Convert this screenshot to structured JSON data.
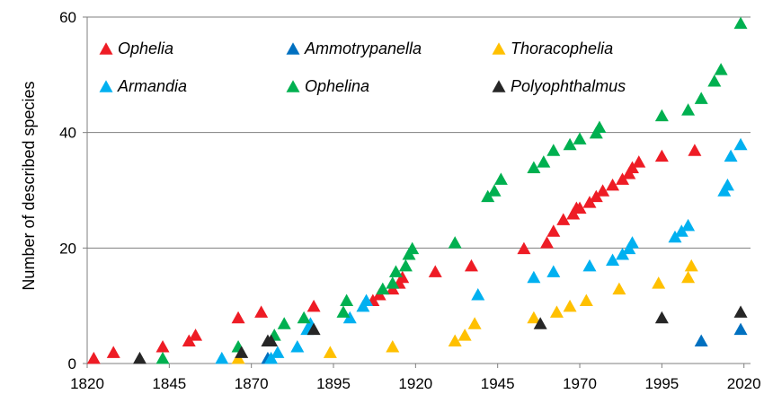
{
  "chart_data": {
    "type": "scatter",
    "title": "",
    "xlabel": "",
    "ylabel": "Number of described species",
    "xlim": [
      1820,
      2022
    ],
    "ylim": [
      0,
      60
    ],
    "xticks": [
      1820,
      1845,
      1870,
      1895,
      1920,
      1945,
      1970,
      1995,
      2020
    ],
    "yticks": [
      0,
      20,
      40,
      60
    ],
    "grid": "horizontal",
    "legend": {
      "placement": "top-left",
      "columns": 3
    },
    "marker": "triangle",
    "series": [
      {
        "name": "Ophelia",
        "color": "#ee1c25",
        "points": [
          [
            1822,
            1
          ],
          [
            1828,
            2
          ],
          [
            1843,
            3
          ],
          [
            1851,
            4
          ],
          [
            1853,
            5
          ],
          [
            1866,
            8
          ],
          [
            1873,
            9
          ],
          [
            1889,
            10
          ],
          [
            1907,
            11
          ],
          [
            1909,
            12
          ],
          [
            1913,
            13
          ],
          [
            1915,
            14
          ],
          [
            1916,
            15
          ],
          [
            1926,
            16
          ],
          [
            1937,
            17
          ],
          [
            1953,
            20
          ],
          [
            1960,
            21
          ],
          [
            1962,
            23
          ],
          [
            1965,
            25
          ],
          [
            1968,
            26
          ],
          [
            1969,
            27
          ],
          [
            1970,
            27
          ],
          [
            1973,
            28
          ],
          [
            1975,
            29
          ],
          [
            1977,
            30
          ],
          [
            1980,
            31
          ],
          [
            1983,
            32
          ],
          [
            1985,
            33
          ],
          [
            1986,
            34
          ],
          [
            1988,
            35
          ],
          [
            1995,
            36
          ],
          [
            2005,
            37
          ]
        ]
      },
      {
        "name": "Ammotrypanella",
        "color": "#0070c0",
        "points": [
          [
            1875,
            1
          ],
          [
            2007,
            4
          ],
          [
            2019,
            6
          ]
        ]
      },
      {
        "name": "Thoracophelia",
        "color": "#ffc000",
        "points": [
          [
            1866,
            1
          ],
          [
            1894,
            2
          ],
          [
            1913,
            3
          ],
          [
            1932,
            4
          ],
          [
            1935,
            5
          ],
          [
            1938,
            7
          ],
          [
            1956,
            8
          ],
          [
            1963,
            9
          ],
          [
            1967,
            10
          ],
          [
            1972,
            11
          ],
          [
            1982,
            13
          ],
          [
            1994,
            14
          ],
          [
            2003,
            15
          ],
          [
            2004,
            17
          ]
        ]
      },
      {
        "name": "Armandia",
        "color": "#00b0f0",
        "points": [
          [
            1861,
            1
          ],
          [
            1876,
            1
          ],
          [
            1878,
            2
          ],
          [
            1884,
            3
          ],
          [
            1887,
            6
          ],
          [
            1888,
            7
          ],
          [
            1900,
            8
          ],
          [
            1904,
            10
          ],
          [
            1905,
            11
          ],
          [
            1939,
            12
          ],
          [
            1956,
            15
          ],
          [
            1962,
            16
          ],
          [
            1973,
            17
          ],
          [
            1980,
            18
          ],
          [
            1983,
            19
          ],
          [
            1985,
            20
          ],
          [
            1986,
            21
          ],
          [
            1999,
            22
          ],
          [
            2001,
            23
          ],
          [
            2003,
            24
          ],
          [
            2014,
            30
          ],
          [
            2015,
            31
          ],
          [
            2016,
            36
          ],
          [
            2019,
            38
          ]
        ]
      },
      {
        "name": "Ophelina",
        "color": "#00b050",
        "points": [
          [
            1843,
            1
          ],
          [
            1866,
            3
          ],
          [
            1877,
            5
          ],
          [
            1880,
            7
          ],
          [
            1886,
            8
          ],
          [
            1898,
            9
          ],
          [
            1899,
            11
          ],
          [
            1910,
            13
          ],
          [
            1913,
            14
          ],
          [
            1914,
            16
          ],
          [
            1917,
            17
          ],
          [
            1918,
            19
          ],
          [
            1919,
            20
          ],
          [
            1932,
            21
          ],
          [
            1942,
            29
          ],
          [
            1944,
            30
          ],
          [
            1946,
            32
          ],
          [
            1956,
            34
          ],
          [
            1959,
            35
          ],
          [
            1962,
            37
          ],
          [
            1967,
            38
          ],
          [
            1970,
            39
          ],
          [
            1975,
            40
          ],
          [
            1976,
            41
          ],
          [
            1995,
            43
          ],
          [
            2003,
            44
          ],
          [
            2007,
            46
          ],
          [
            2011,
            49
          ],
          [
            2013,
            51
          ],
          [
            2019,
            59
          ]
        ]
      },
      {
        "name": "Polyophthalmus",
        "color": "#262626",
        "points": [
          [
            1836,
            1
          ],
          [
            1867,
            2
          ],
          [
            1875,
            4
          ],
          [
            1876,
            4
          ],
          [
            1889,
            6
          ],
          [
            1958,
            7
          ],
          [
            1995,
            8
          ],
          [
            2019,
            9
          ]
        ]
      }
    ]
  }
}
